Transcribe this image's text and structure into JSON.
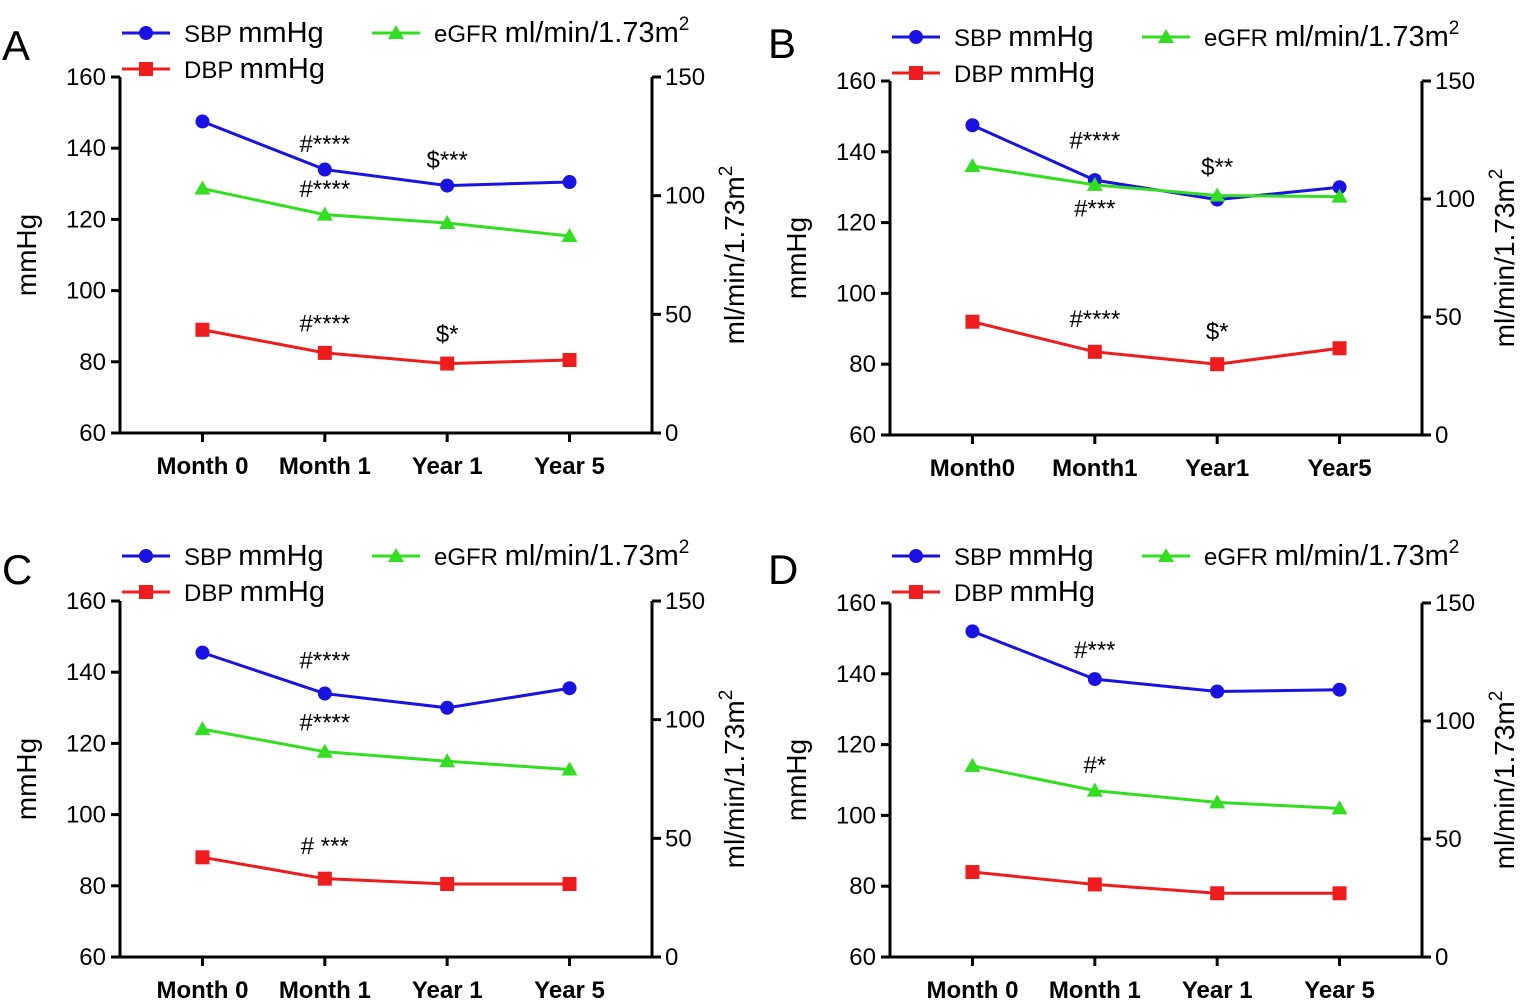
{
  "chart_data": [
    {
      "panel": "A",
      "type": "line",
      "categories": [
        "Month 0",
        "Month 1",
        "Year 1",
        "Year 5"
      ],
      "ylabel": "mmHg",
      "ylim": [
        60,
        160
      ],
      "yticks": [
        60,
        80,
        100,
        120,
        140,
        160
      ],
      "y2label": "ml/min/1.73m2",
      "y2lim": [
        0,
        150
      ],
      "y2ticks": [
        0,
        50,
        100,
        150
      ],
      "legend": [
        {
          "key": "SBP",
          "unit": "mmHg",
          "color": "#1a12e0",
          "marker": "circle"
        },
        {
          "key": "eGFR",
          "unit": "ml/min/1.73m",
          "sup": "2",
          "color": "#33dd22",
          "marker": "triangle"
        },
        {
          "key": "DBP",
          "unit": "mmHg",
          "color": "#ee1c1c",
          "marker": "square"
        }
      ],
      "series": [
        {
          "name": "SBP",
          "axis": "left",
          "color": "#1a12e0",
          "marker": "circle",
          "values": [
            147.5,
            134,
            129.5,
            130.5
          ]
        },
        {
          "name": "eGFR",
          "axis": "right",
          "color": "#33dd22",
          "marker": "triangle",
          "values": [
            103,
            92,
            88.5,
            83
          ]
        },
        {
          "name": "DBP",
          "axis": "left",
          "color": "#ee1c1c",
          "marker": "square",
          "values": [
            89,
            82.5,
            79.5,
            80.5
          ]
        }
      ],
      "annotations": [
        {
          "text": "#****",
          "category": 1,
          "series": "SBP",
          "dy": 0.05
        },
        {
          "text": "$***",
          "category": 2,
          "series": "SBP",
          "dy": 0.05
        },
        {
          "text": "#****",
          "category": 1,
          "series": "eGFR",
          "dy": 0.05
        },
        {
          "text": "#****",
          "category": 1,
          "series": "DBP",
          "dy": 0.06
        },
        {
          "text": "$*",
          "category": 2,
          "series": "DBP",
          "dy": 0.06
        }
      ]
    },
    {
      "panel": "B",
      "type": "line",
      "categories": [
        "Month0",
        "Month1",
        "Year1",
        "Year5"
      ],
      "ylabel": "mmHg",
      "ylim": [
        60,
        160
      ],
      "yticks": [
        60,
        80,
        100,
        120,
        140,
        160
      ],
      "y2label": "ml/min/1.73m2",
      "y2lim": [
        0,
        150
      ],
      "y2ticks": [
        0,
        50,
        100,
        150
      ],
      "legend": [
        {
          "key": "SBP",
          "unit": "mmHg",
          "color": "#1a12e0",
          "marker": "circle"
        },
        {
          "key": "eGFR",
          "unit": "ml/min/1.73m",
          "sup": "2",
          "color": "#33dd22",
          "marker": "triangle"
        },
        {
          "key": "DBP",
          "unit": "mmHg",
          "color": "#ee1c1c",
          "marker": "square"
        }
      ],
      "series": [
        {
          "name": "SBP",
          "axis": "left",
          "color": "#1a12e0",
          "marker": "circle",
          "values": [
            147.5,
            132,
            126.5,
            130
          ]
        },
        {
          "name": "eGFR",
          "axis": "right",
          "color": "#33dd22",
          "marker": "triangle",
          "values": [
            114,
            106,
            101.5,
            101
          ]
        },
        {
          "name": "DBP",
          "axis": "left",
          "color": "#ee1c1c",
          "marker": "square",
          "values": [
            92,
            83.5,
            80,
            84.5
          ]
        }
      ],
      "annotations": [
        {
          "text": "#****",
          "category": 1,
          "series": "SBP",
          "dy": 0.09
        },
        {
          "text": "$**",
          "category": 2,
          "series": "SBP",
          "dy": 0.07
        },
        {
          "text": "#***",
          "category": 1,
          "series": "eGFR",
          "dy": -0.09
        },
        {
          "text": "#****",
          "category": 1,
          "series": "DBP",
          "dy": 0.07
        },
        {
          "text": "$*",
          "category": 2,
          "series": "DBP",
          "dy": 0.07
        }
      ]
    },
    {
      "panel": "C",
      "type": "line",
      "categories": [
        "Month 0",
        "Month 1",
        "Year 1",
        "Year 5"
      ],
      "ylabel": "mmHg",
      "ylim": [
        60,
        160
      ],
      "yticks": [
        60,
        80,
        100,
        120,
        140,
        160
      ],
      "y2label": "ml/min/1.73m2",
      "y2lim": [
        0,
        150
      ],
      "y2ticks": [
        0,
        50,
        100,
        150
      ],
      "legend": [
        {
          "key": "SBP",
          "unit": "mmHg",
          "color": "#1a12e0",
          "marker": "circle"
        },
        {
          "key": "eGFR",
          "unit": "ml/min/1.73m",
          "sup": "2",
          "color": "#33dd22",
          "marker": "triangle"
        },
        {
          "key": "DBP",
          "unit": "mmHg",
          "color": "#ee1c1c",
          "marker": "square"
        }
      ],
      "series": [
        {
          "name": "SBP",
          "axis": "left",
          "color": "#1a12e0",
          "marker": "circle",
          "values": [
            145.5,
            134,
            130,
            135.5
          ]
        },
        {
          "name": "eGFR",
          "axis": "right",
          "color": "#33dd22",
          "marker": "triangle",
          "values": [
            96,
            86.5,
            82.5,
            79
          ]
        },
        {
          "name": "DBP",
          "axis": "left",
          "color": "#ee1c1c",
          "marker": "square",
          "values": [
            88,
            82,
            80.5,
            80.5
          ]
        }
      ],
      "annotations": [
        {
          "text": "#****",
          "category": 1,
          "series": "SBP",
          "dy": 0.07
        },
        {
          "text": "#****",
          "category": 1,
          "series": "eGFR",
          "dy": 0.06
        },
        {
          "text": "# ***",
          "category": 1,
          "series": "DBP",
          "dy": 0.07
        }
      ]
    },
    {
      "panel": "D",
      "type": "line",
      "categories": [
        "Month 0",
        "Month 1",
        "Year 1",
        "Year 5"
      ],
      "ylabel": "mmHg",
      "ylim": [
        60,
        160
      ],
      "yticks": [
        60,
        80,
        100,
        120,
        140,
        160
      ],
      "y2label": "ml/min/1.73m2",
      "y2lim": [
        0,
        150
      ],
      "y2ticks": [
        0,
        50,
        100,
        150
      ],
      "legend": [
        {
          "key": "SBP",
          "unit": "mmHg",
          "color": "#1a12e0",
          "marker": "circle"
        },
        {
          "key": "eGFR",
          "unit": "ml/min/1.73m",
          "sup": "2",
          "color": "#33dd22",
          "marker": "triangle"
        },
        {
          "key": "DBP",
          "unit": "mmHg",
          "color": "#ee1c1c",
          "marker": "square"
        }
      ],
      "series": [
        {
          "name": "SBP",
          "axis": "left",
          "color": "#1a12e0",
          "marker": "circle",
          "values": [
            152,
            138.5,
            135,
            135.5
          ]
        },
        {
          "name": "eGFR",
          "axis": "right",
          "color": "#33dd22",
          "marker": "triangle",
          "values": [
            81,
            70.5,
            65.5,
            63
          ]
        },
        {
          "name": "DBP",
          "axis": "left",
          "color": "#ee1c1c",
          "marker": "square",
          "values": [
            84,
            80.5,
            78,
            78
          ]
        }
      ],
      "annotations": [
        {
          "text": "#***",
          "category": 1,
          "series": "SBP",
          "dy": 0.06
        },
        {
          "text": "#*",
          "category": 1,
          "series": "eGFR",
          "dy": 0.05
        }
      ]
    }
  ]
}
